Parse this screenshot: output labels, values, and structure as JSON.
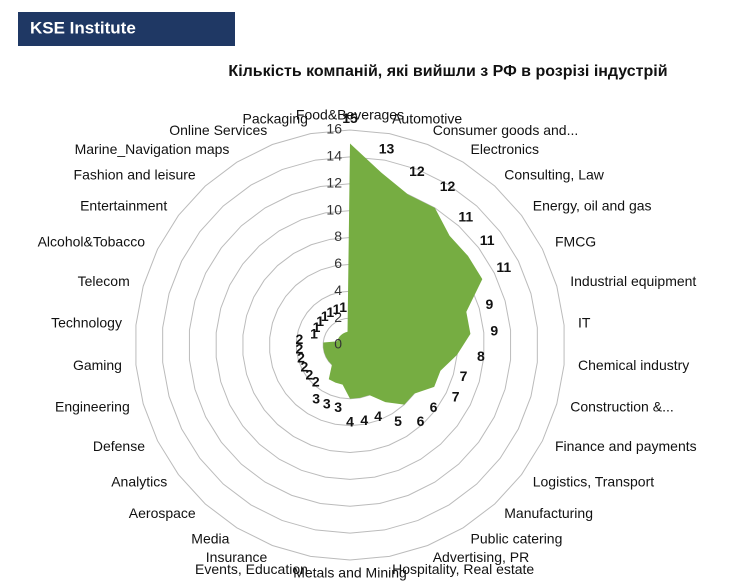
{
  "header": {
    "brand": "KSE Institute"
  },
  "chart_data": {
    "type": "radar",
    "title": "Кількість компаній, які вийшли з РФ в розрізі індустрій",
    "categories": [
      "Food&Beverages",
      "Automotive",
      "Consumer goods and...",
      "Electronics",
      "Consulting, Law",
      "Energy, oil and gas",
      "FMCG",
      "Industrial equipment",
      "IT",
      "Chemical industry",
      "Construction &...",
      "Finance and payments",
      "Logistics, Transport",
      "Manufacturing",
      "Public catering",
      "Advertising, PR",
      "Hospitality, Real estate",
      "Metals and Mining",
      "Events, Education",
      "Insurance",
      "Media",
      "Aerospace",
      "Analytics",
      "Defense",
      "Engineering",
      "Gaming",
      "Technology",
      "Telecom",
      "Alcohol&Tobacco",
      "Entertainment",
      "Fashion and leisure",
      "Marine_Navigation maps",
      "Online Services",
      "Packaging"
    ],
    "values": [
      15,
      13,
      12,
      12,
      11,
      11,
      11,
      9,
      9,
      8,
      7,
      7,
      6,
      6,
      5,
      4,
      4,
      4,
      3,
      3,
      3,
      2,
      2,
      2,
      2,
      2,
      2,
      1,
      1,
      1,
      1,
      1,
      1,
      1
    ],
    "color": "#76ad42",
    "ylim": [
      0,
      16
    ],
    "yticks": [
      0,
      2,
      4,
      6,
      8,
      10,
      12,
      14,
      16
    ],
    "grid": true
  }
}
